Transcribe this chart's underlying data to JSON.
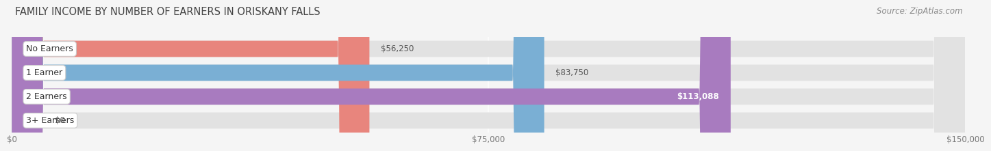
{
  "title": "FAMILY INCOME BY NUMBER OF EARNERS IN ORISKANY FALLS",
  "source": "Source: ZipAtlas.com",
  "categories": [
    "No Earners",
    "1 Earner",
    "2 Earners",
    "3+ Earners"
  ],
  "values": [
    56250,
    83750,
    113088,
    0
  ],
  "bar_colors": [
    "#e8857d",
    "#7aafd4",
    "#a87bbf",
    "#5ec8c4"
  ],
  "value_labels": [
    "$56,250",
    "$83,750",
    "$113,088",
    "$0"
  ],
  "xlim": [
    0,
    150000
  ],
  "xticks": [
    0,
    75000,
    150000
  ],
  "xticklabels": [
    "$0",
    "$75,000",
    "$150,000"
  ],
  "background_color": "#f5f5f5",
  "bar_bg_color": "#e2e2e2",
  "title_fontsize": 10.5,
  "source_fontsize": 8.5,
  "label_fontsize": 9,
  "value_fontsize": 8.5,
  "tick_fontsize": 8.5
}
